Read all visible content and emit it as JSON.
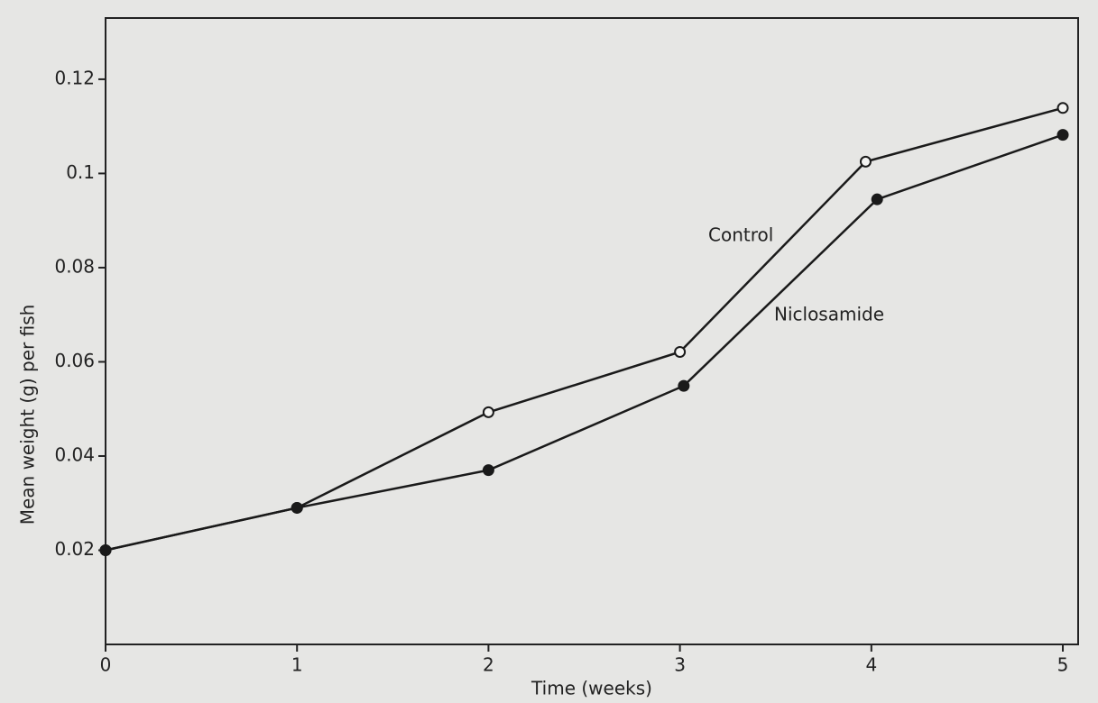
{
  "chart_data": {
    "type": "line",
    "xlabel": "Time (weeks)",
    "ylabel": "Mean weight (g) per fish",
    "xlim": [
      0,
      5.08
    ],
    "xticks": [
      0,
      1,
      2,
      3,
      4,
      5
    ],
    "ylim": [
      0,
      0.133
    ],
    "yticks": [
      0.02,
      0.04,
      0.06,
      0.08,
      0.1,
      0.12
    ],
    "grid": false,
    "series": [
      {
        "name": "Control",
        "color": "#1a1a1a",
        "marker": "open",
        "x": [
          0,
          1,
          2,
          3,
          3.97,
          5
        ],
        "values": [
          0.02,
          0.029,
          0.0493,
          0.0621,
          0.1025,
          0.1139
        ]
      },
      {
        "name": "Niclosamide",
        "color": "#1a1a1a",
        "marker": "filled",
        "x": [
          0,
          1,
          2,
          3.02,
          4.03,
          5
        ],
        "values": [
          0.02,
          0.029,
          0.037,
          0.0549,
          0.0945,
          0.1082
        ]
      }
    ]
  }
}
